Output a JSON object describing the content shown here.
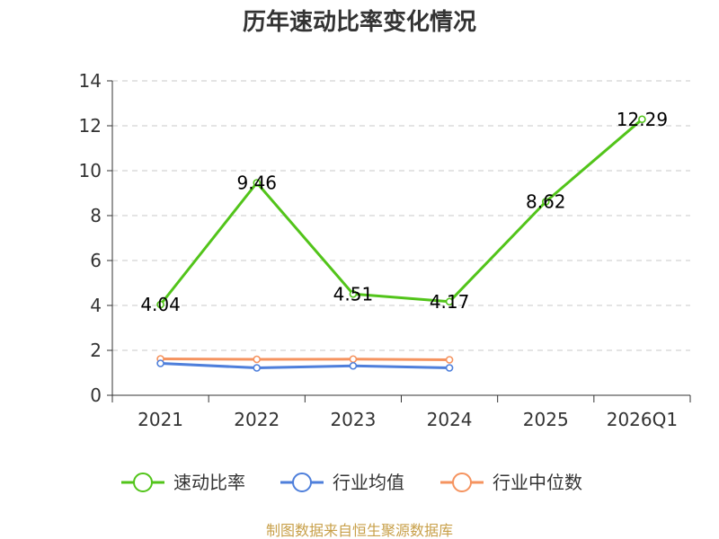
{
  "chart_data": {
    "type": "line",
    "title": "历年速动比率变化情况",
    "categories": [
      "2021",
      "2022",
      "2023",
      "2024",
      "2025",
      "2026Q1"
    ],
    "ylim": [
      0,
      14
    ],
    "yticks": [
      0,
      2,
      4,
      6,
      8,
      10,
      12,
      14
    ],
    "grid": true,
    "legend_position": "bottom",
    "series": [
      {
        "name": "速动比率",
        "color": "#52c41a",
        "values": [
          4.04,
          9.46,
          4.51,
          4.17,
          8.62,
          12.29
        ],
        "labels": [
          "4.04",
          "9.46",
          "4.51",
          "4.17",
          "8.62",
          "12.29"
        ]
      },
      {
        "name": "行业均值",
        "color": "#4e7fdb",
        "values": [
          1.42,
          1.22,
          1.31,
          1.22,
          null,
          null
        ]
      },
      {
        "name": "行业中位数",
        "color": "#f5935f",
        "values": [
          1.62,
          1.6,
          1.61,
          1.58,
          null,
          null
        ]
      }
    ]
  },
  "source": {
    "text": "制图数据来自恒生聚源数据库",
    "color": "#c8a04a"
  }
}
